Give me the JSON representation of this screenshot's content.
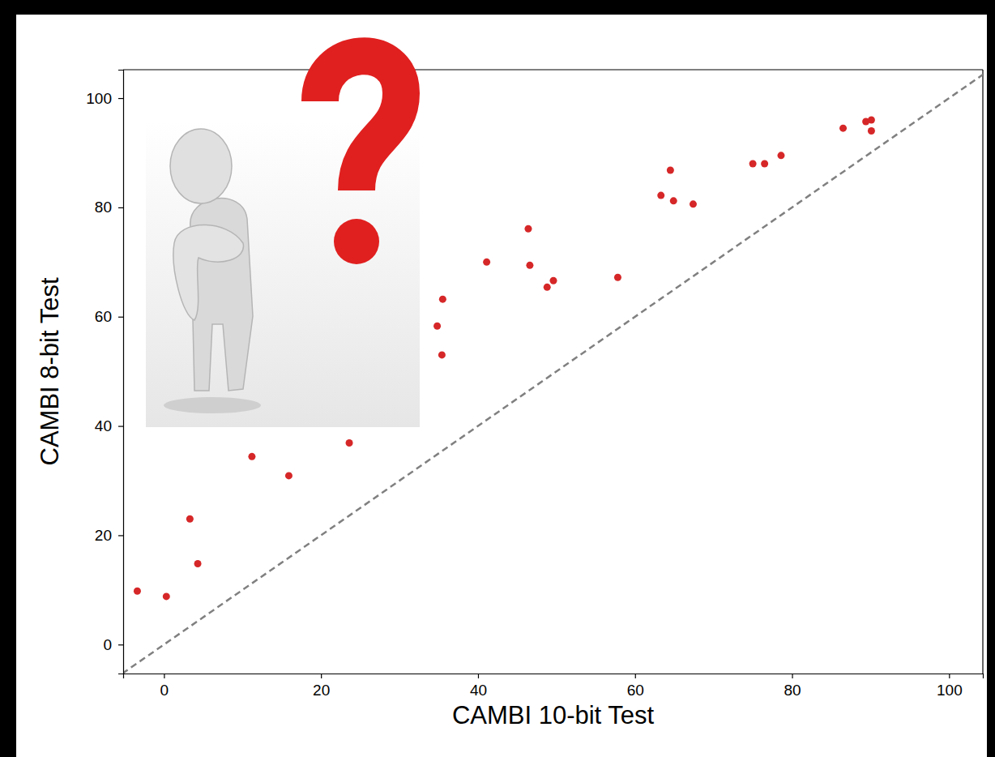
{
  "chart_data": {
    "type": "scatter",
    "x_label": "CAMBI 10-bit Test",
    "y_label": "CAMBI 8-bit Test",
    "x": [
      -3.4,
      0.3,
      3.3,
      4.3,
      11.2,
      15.9,
      23.6,
      34.8,
      35.4,
      35.5,
      41.1,
      46.4,
      46.6,
      48.8,
      49.6,
      57.8,
      63.3,
      64.5,
      64.9,
      67.4,
      75.0,
      76.5,
      78.6,
      86.5,
      89.4,
      90.1,
      90.1
    ],
    "values": [
      9.8,
      8.8,
      23.0,
      14.8,
      34.4,
      30.9,
      36.9,
      58.3,
      53.0,
      63.2,
      70.0,
      76.1,
      69.4,
      65.4,
      66.6,
      67.2,
      82.2,
      86.8,
      81.2,
      80.6,
      88.0,
      88.0,
      89.5,
      94.5,
      95.7,
      96.0,
      94.0
    ],
    "color": "#d62728",
    "marker": "circle",
    "xlim": [
      -5.2,
      104.3
    ],
    "ylim": [
      -5.3,
      105.2
    ],
    "xticks": [
      0,
      20,
      40,
      60,
      80,
      100
    ],
    "yticks": [
      0,
      20,
      40,
      60,
      80,
      100
    ],
    "grid": false
  }
}
